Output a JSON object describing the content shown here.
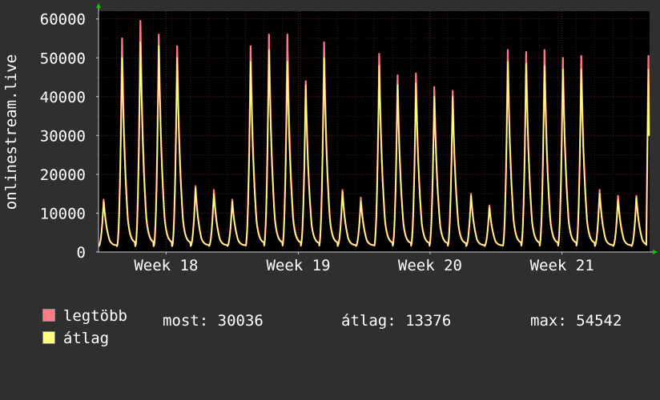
{
  "chart_data": {
    "type": "line",
    "ylabel": "onlinestream.live",
    "yticks": [
      0,
      10000,
      20000,
      30000,
      40000,
      50000,
      60000
    ],
    "ylim": [
      0,
      62000
    ],
    "xlim": [
      0,
      30
    ],
    "xticks": [
      {
        "x": 3.68,
        "label": "Week 18"
      },
      {
        "x": 10.88,
        "label": "Week 19"
      },
      {
        "x": 18.05,
        "label": "Week 20"
      },
      {
        "x": 25.23,
        "label": "Week 21"
      }
    ],
    "grid": true,
    "background": "#000000",
    "daily_values": [
      {
        "day": 0,
        "max": 13500,
        "avg": 13000
      },
      {
        "day": 1,
        "max": 55000,
        "avg": 50000
      },
      {
        "day": 2,
        "max": 59500,
        "avg": 54000
      },
      {
        "day": 3,
        "max": 56000,
        "avg": 53000
      },
      {
        "day": 4,
        "max": 53000,
        "avg": 50000
      },
      {
        "day": 5,
        "max": 17000,
        "avg": 16500
      },
      {
        "day": 6,
        "max": 16000,
        "avg": 15000
      },
      {
        "day": 7,
        "max": 13500,
        "avg": 13000
      },
      {
        "day": 8,
        "max": 53000,
        "avg": 49000
      },
      {
        "day": 9,
        "max": 56000,
        "avg": 52000
      },
      {
        "day": 10,
        "max": 56000,
        "avg": 49000
      },
      {
        "day": 11,
        "max": 44000,
        "avg": 43000
      },
      {
        "day": 12,
        "max": 54000,
        "avg": 50000
      },
      {
        "day": 13,
        "max": 16000,
        "avg": 15500
      },
      {
        "day": 14,
        "max": 14000,
        "avg": 13000
      },
      {
        "day": 15,
        "max": 51000,
        "avg": 48000
      },
      {
        "day": 16,
        "max": 45500,
        "avg": 43000
      },
      {
        "day": 17,
        "max": 46000,
        "avg": 43500
      },
      {
        "day": 18,
        "max": 42500,
        "avg": 40000
      },
      {
        "day": 19,
        "max": 41500,
        "avg": 40000
      },
      {
        "day": 20,
        "max": 15000,
        "avg": 14500
      },
      {
        "day": 21,
        "max": 12000,
        "avg": 11500
      },
      {
        "day": 22,
        "max": 52000,
        "avg": 49000
      },
      {
        "day": 23,
        "max": 51500,
        "avg": 48500
      },
      {
        "day": 24,
        "max": 52000,
        "avg": 48000
      },
      {
        "day": 25,
        "max": 50000,
        "avg": 47000
      },
      {
        "day": 26,
        "max": 50500,
        "avg": 47000
      },
      {
        "day": 27,
        "max": 16000,
        "avg": 15000
      },
      {
        "day": 28,
        "max": 14500,
        "avg": 13500
      },
      {
        "day": 29,
        "max": 14500,
        "avg": 14000
      },
      {
        "day": 30,
        "max": 50500,
        "avg": 47000
      }
    ],
    "last_value": 30036,
    "colors": {
      "max": "#ff7b88",
      "avg": "#ffff80",
      "plot_bg": "#000000",
      "page_bg": "#2f2f2f",
      "grid": "#5a2424",
      "arrow": "#00cc00"
    },
    "series": [
      {
        "name": "legtöbb",
        "key": "max"
      },
      {
        "name": "átlag",
        "key": "avg"
      }
    ]
  },
  "legend": {
    "max_label": "legtöbb",
    "avg_label": "átlag",
    "stats": {
      "most": "most: 30036",
      "atlag": "átlag: 13376",
      "max": "max: 54542"
    }
  }
}
